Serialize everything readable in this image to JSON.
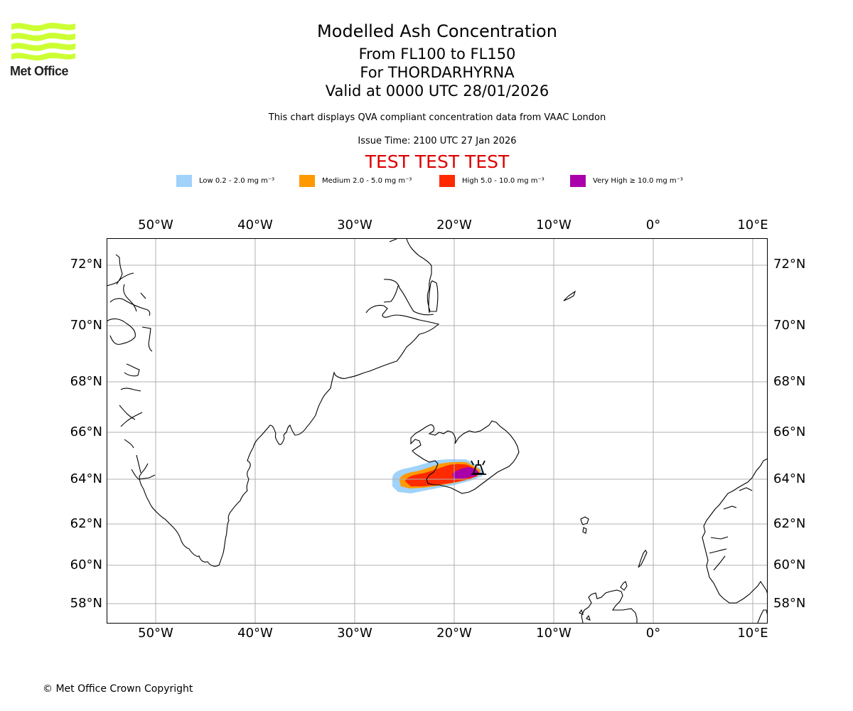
{
  "logo": {
    "text": "Met Office",
    "color": "#ccff33"
  },
  "header": {
    "title": "Modelled Ash Concentration",
    "levels": "From FL100 to FL150",
    "volcano": "For THORDARHYRNA",
    "valid": "Valid at 0000 UTC 28/01/2026",
    "description": "This chart displays QVA compliant concentration data from VAAC London",
    "issue_time": "Issue Time: 2100 UTC 27 Jan 2026",
    "test_banner": "TEST TEST TEST",
    "test_color": "#dd0000"
  },
  "legend": [
    {
      "label": "Low 0.2 - 2.0 mg m⁻³",
      "color": "#a0d2fa"
    },
    {
      "label": "Medium 2.0 - 5.0 mg m⁻³",
      "color": "#ff9900"
    },
    {
      "label": "High 5.0 - 10.0 mg m⁻³",
      "color": "#ff2a00"
    },
    {
      "label": "Very High  ≥  10.0 mg m⁻³",
      "color": "#aa00aa"
    }
  ],
  "map": {
    "lon_ticks": [
      "50°W",
      "40°W",
      "30°W",
      "20°W",
      "10°W",
      "0°",
      "10°E"
    ],
    "lat_ticks": [
      "72°N",
      "70°N",
      "68°N",
      "66°N",
      "64°N",
      "62°N",
      "60°N",
      "58°N"
    ],
    "volcano_symbol": "volcano-icon",
    "gridline_color": "#b0b0b0"
  },
  "footer": {
    "copyright": "© Met Office Crown Copyright"
  }
}
